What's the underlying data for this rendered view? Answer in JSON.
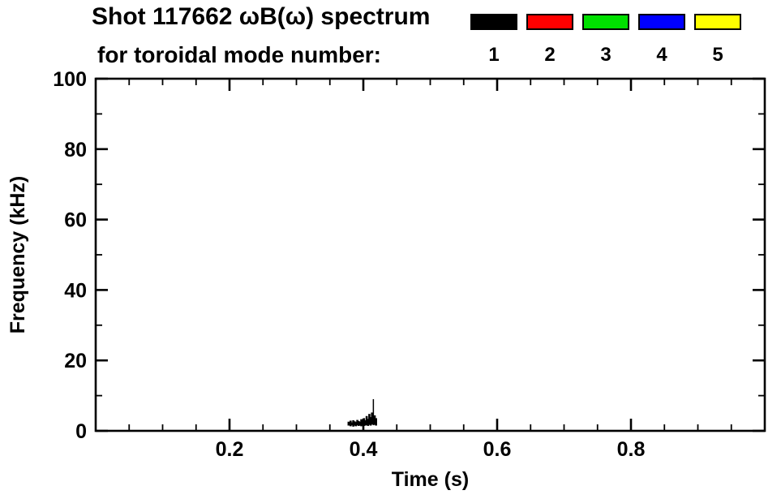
{
  "chart_data": {
    "type": "scatter",
    "title": "Shot 117662 ωB(ω) spectrum",
    "subtitle": "for toroidal mode number:",
    "xlabel": "Time (s)",
    "ylabel": "Frequency (kHz)",
    "xlim": [
      0.0,
      1.0
    ],
    "ylim": [
      0,
      100
    ],
    "grid": false,
    "x_ticks": {
      "values": [
        0.2,
        0.4,
        0.6,
        0.8
      ],
      "labels": [
        "0.2",
        "0.4",
        "0.6",
        "0.8"
      ]
    },
    "y_ticks": {
      "values": [
        0,
        20,
        40,
        60,
        80,
        100
      ],
      "labels": [
        "0",
        "20",
        "40",
        "60",
        "80",
        "100"
      ]
    },
    "x_minor_step": 0.05,
    "y_minor_step": 10,
    "legend": {
      "position": "top-right",
      "entries": [
        {
          "label": "1",
          "color": "#000000"
        },
        {
          "label": "2",
          "color": "#ff0000"
        },
        {
          "label": "3",
          "color": "#00e000"
        },
        {
          "label": "4",
          "color": "#0000ff"
        },
        {
          "label": "5",
          "color": "#ffff00"
        }
      ]
    },
    "series": [
      {
        "name": "toroidal mode n=1",
        "color": "#000000",
        "marker": "vertical-strokes",
        "segments": [
          [
            0.378,
            1.5,
            2.6
          ],
          [
            0.381,
            1.3,
            2.9
          ],
          [
            0.383,
            1.6,
            2.4
          ],
          [
            0.385,
            1.2,
            3.0
          ],
          [
            0.387,
            1.5,
            2.7
          ],
          [
            0.389,
            1.3,
            2.5
          ],
          [
            0.391,
            1.6,
            3.1
          ],
          [
            0.393,
            1.4,
            2.8
          ],
          [
            0.395,
            1.5,
            2.6
          ],
          [
            0.397,
            1.3,
            3.3
          ],
          [
            0.399,
            1.6,
            2.9
          ],
          [
            0.401,
            1.4,
            3.6
          ],
          [
            0.403,
            1.5,
            3.0
          ],
          [
            0.405,
            1.6,
            4.2
          ],
          [
            0.407,
            1.4,
            3.4
          ],
          [
            0.409,
            1.7,
            4.8
          ],
          [
            0.411,
            1.5,
            3.9
          ],
          [
            0.413,
            1.8,
            5.2
          ],
          [
            0.415,
            1.6,
            9.0
          ],
          [
            0.417,
            1.7,
            4.4
          ],
          [
            0.419,
            1.5,
            3.6
          ]
        ]
      }
    ]
  }
}
